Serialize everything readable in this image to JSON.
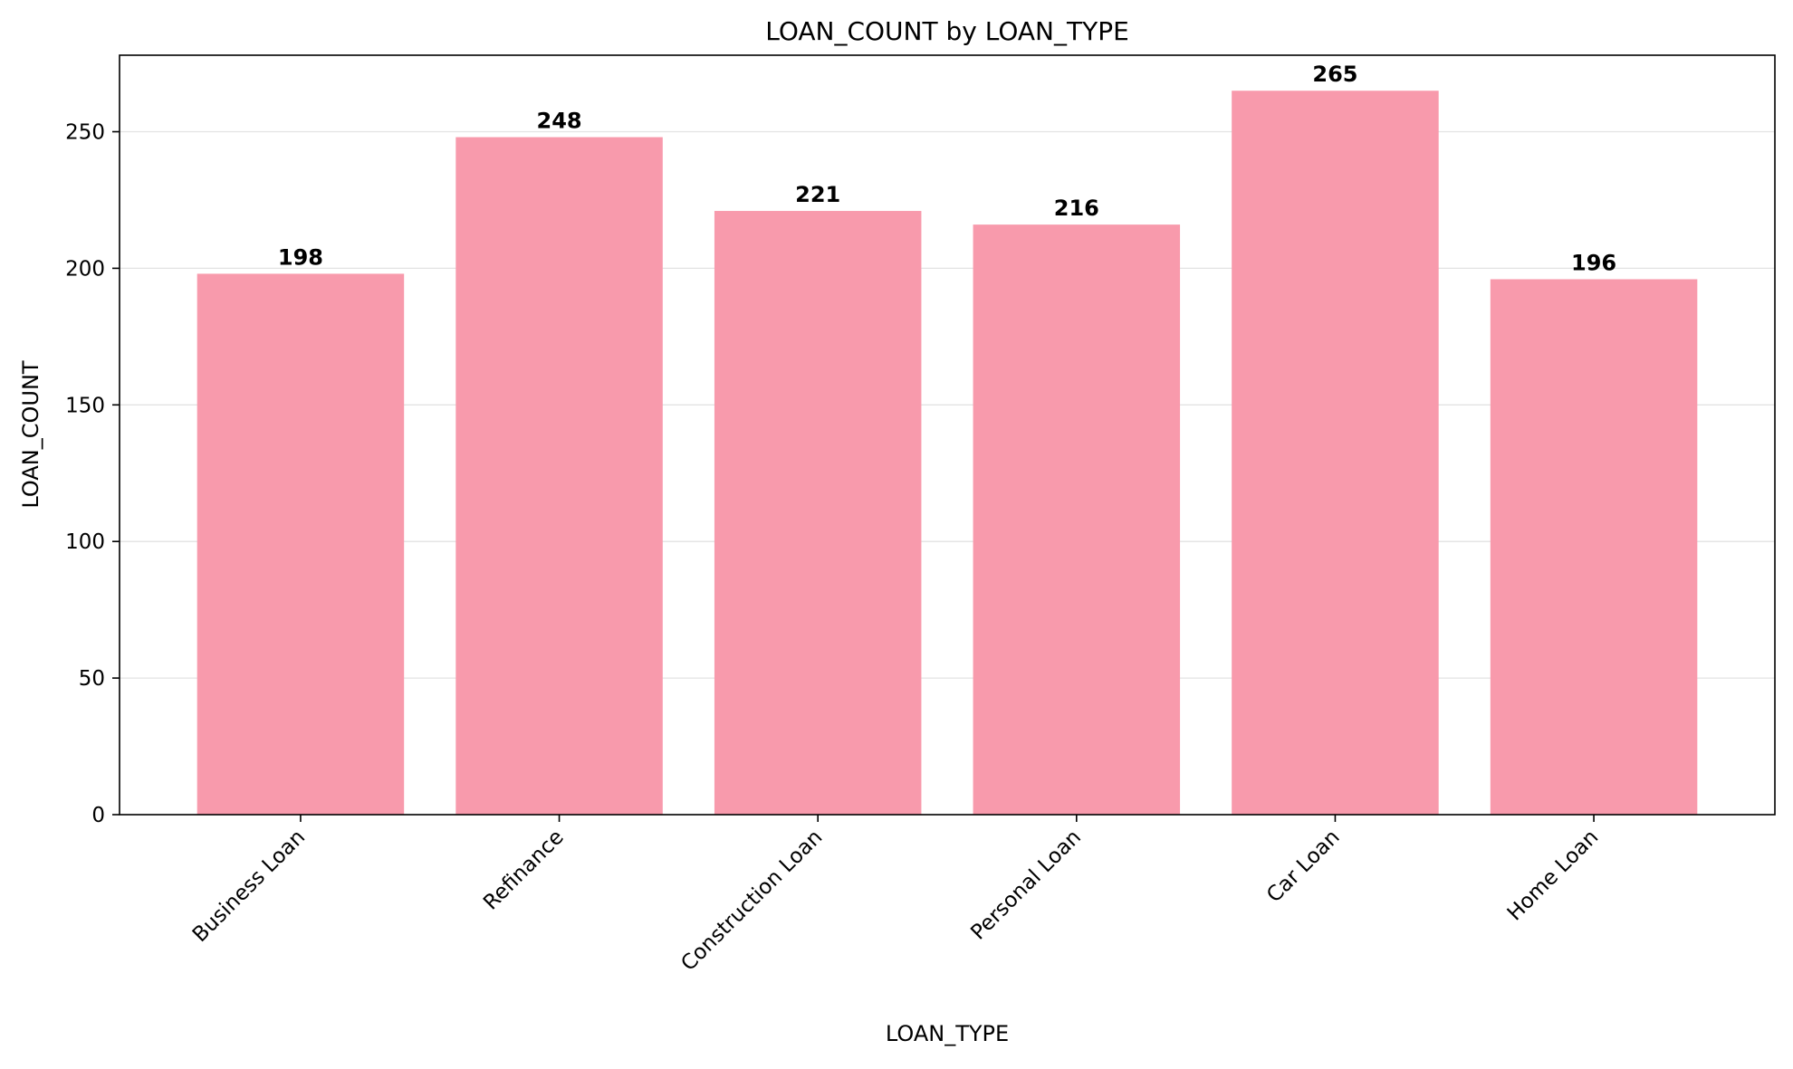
{
  "chart_data": {
    "type": "bar",
    "title": "LOAN_COUNT by LOAN_TYPE",
    "xlabel": "LOAN_TYPE",
    "ylabel": "LOAN_COUNT",
    "categories": [
      "Business Loan",
      "Refinance",
      "Construction Loan",
      "Personal Loan",
      "Car Loan",
      "Home Loan"
    ],
    "values": [
      198,
      248,
      221,
      216,
      265,
      196
    ],
    "data_labels": [
      "198",
      "248",
      "221",
      "216",
      "265",
      "196"
    ],
    "ylim": [
      0,
      278
    ],
    "yticks": [
      0,
      50,
      100,
      150,
      200,
      250
    ],
    "ytick_labels": [
      "0",
      "50",
      "100",
      "150",
      "200",
      "250"
    ],
    "grid": "y",
    "legend": "none",
    "colors": {
      "bar": "#f89aac",
      "grid": "#e3e3e3",
      "axis": "#000000",
      "text": "#000000"
    }
  }
}
